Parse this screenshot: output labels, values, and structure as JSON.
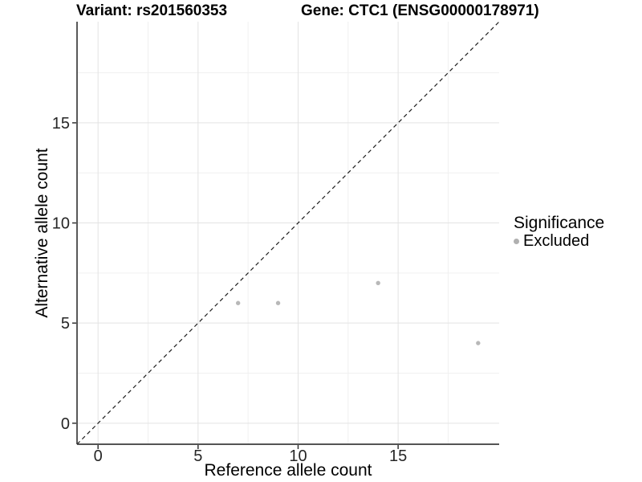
{
  "chart_data": {
    "type": "scatter",
    "title_variant": "Variant: rs201560353",
    "title_gene": "Gene: CTC1 (ENSG00000178971)",
    "xlabel": "Reference allele count",
    "ylabel": "Alternative allele count",
    "xlim": [
      -1.05,
      20.05
    ],
    "ylim": [
      -1.05,
      20.05
    ],
    "xticks": [
      0,
      5,
      10,
      15
    ],
    "yticks": [
      0,
      5,
      10,
      15
    ],
    "xticks_minor": [
      2.5,
      7.5,
      12.5,
      17.5
    ],
    "yticks_minor": [
      2.5,
      7.5,
      12.5,
      17.5
    ],
    "grid": true,
    "legend_position": "right",
    "identity_line": {
      "equation": "y = x",
      "style": "dashed",
      "color": "#1c1c1c"
    },
    "series": [
      {
        "name": "Excluded",
        "color": "#b8b8b8",
        "points": [
          [
            7,
            6
          ],
          [
            9,
            6
          ],
          [
            14,
            7
          ],
          [
            19,
            4
          ]
        ]
      }
    ],
    "legend": {
      "title": "Significance",
      "items": [
        {
          "label": "Excluded",
          "color": "#b0b0b0"
        }
      ]
    },
    "colors": {
      "background": "#ffffff",
      "grid_major": "#e3e3e3",
      "grid_minor": "#f0f0f0",
      "axis_line": "#3c3c3c",
      "tick_mark": "#333333",
      "tick_label": "#262626",
      "point": "#b8b8b8",
      "dashed_line": "#1c1c1c"
    }
  }
}
